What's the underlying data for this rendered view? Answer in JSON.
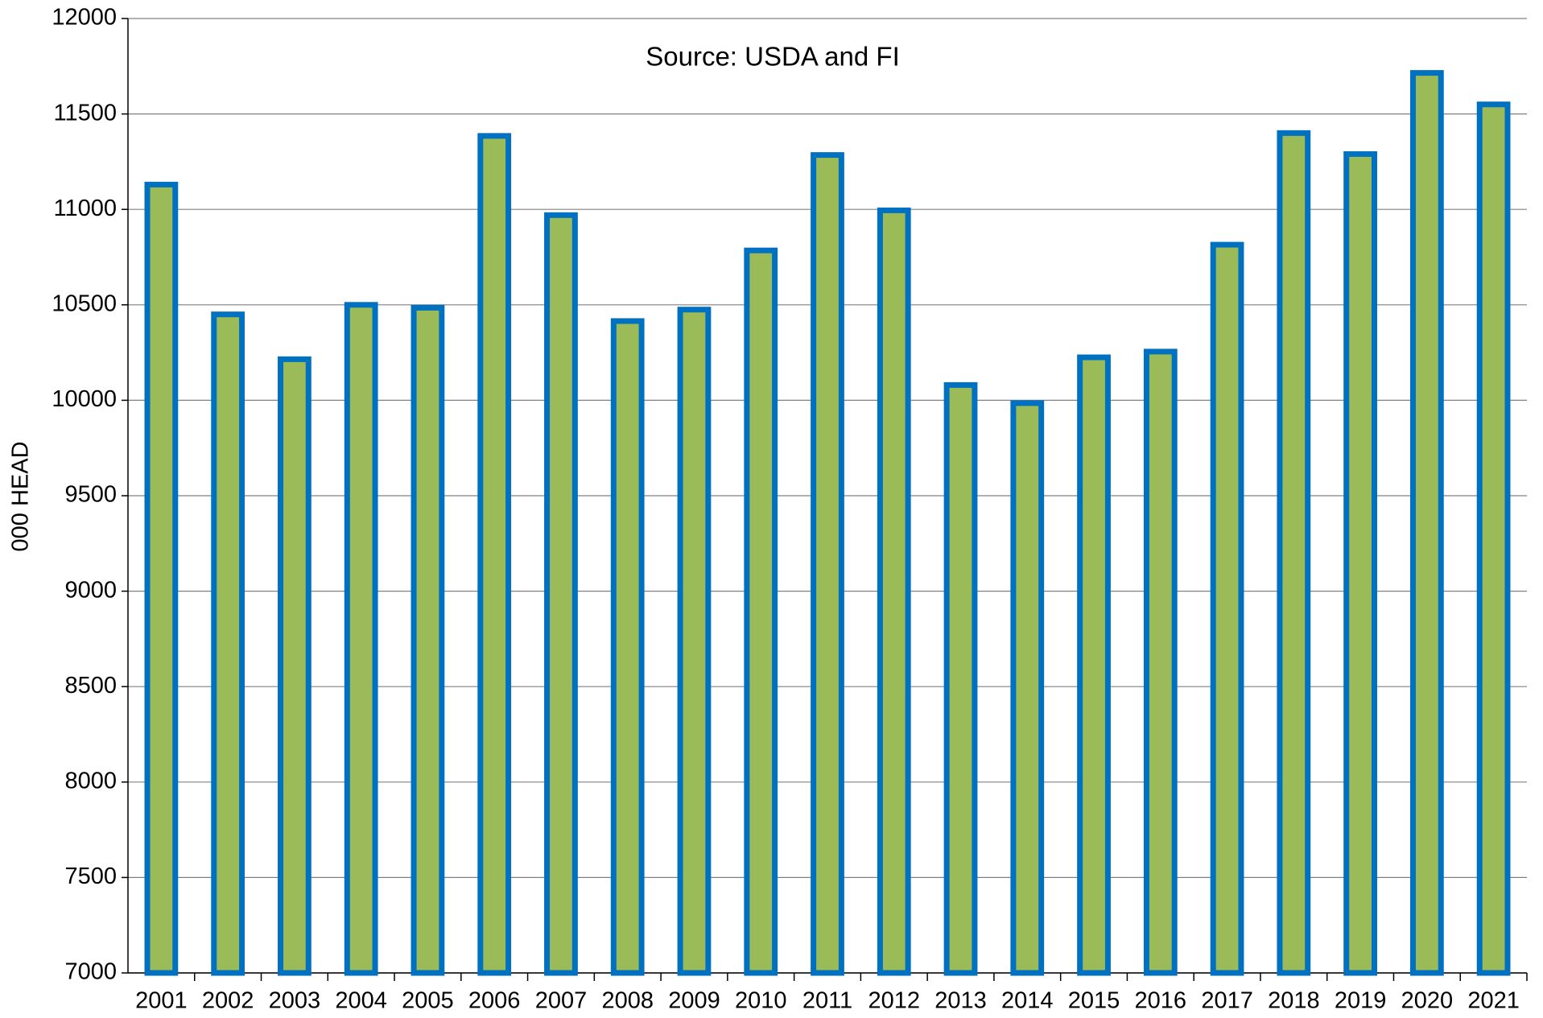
{
  "chart_data": {
    "type": "bar",
    "annotation": "Source: USDA and FI",
    "y_label": "000 HEAD",
    "categories": [
      "2001",
      "2002",
      "2003",
      "2004",
      "2005",
      "2006",
      "2007",
      "2008",
      "2009",
      "2010",
      "2011",
      "2012",
      "2013",
      "2014",
      "2015",
      "2016",
      "2017",
      "2018",
      "2019",
      "2020",
      "2021"
    ],
    "values": [
      11130,
      10450,
      10215,
      10500,
      10485,
      11385,
      10970,
      10415,
      10475,
      10785,
      11285,
      10995,
      10080,
      9985,
      10225,
      10255,
      10815,
      11400,
      11290,
      11715,
      11550
    ],
    "color": "#9bbb59",
    "edge_color": "#0070c0",
    "ylim": [
      7000,
      12000
    ],
    "yticks": [
      7000,
      7500,
      8000,
      8500,
      9000,
      9500,
      10000,
      10500,
      11000,
      11500,
      12000
    ],
    "grid": true
  }
}
